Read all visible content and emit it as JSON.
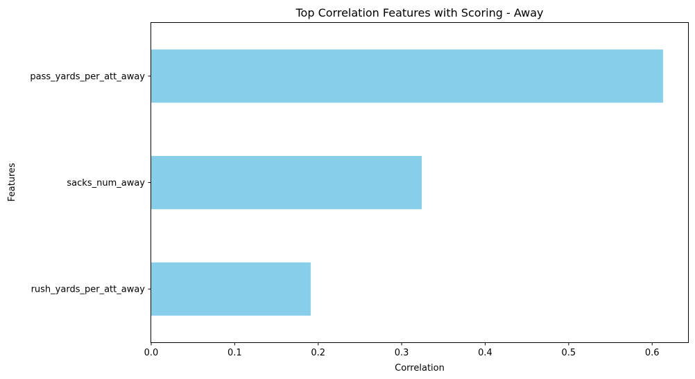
{
  "chart_data": {
    "type": "bar",
    "orientation": "horizontal",
    "title": "Top Correlation Features with Scoring - Away",
    "xlabel": "Correlation",
    "ylabel": "Features",
    "categories": [
      "pass_yards_per_att_away",
      "sacks_num_away",
      "rush_yards_per_att_away"
    ],
    "values": [
      0.613,
      0.324,
      0.191
    ],
    "xlim": [
      0,
      0.643
    ],
    "xticks": [
      0.0,
      0.1,
      0.2,
      0.3,
      0.4,
      0.5,
      0.6
    ],
    "xtick_labels": [
      "0.0",
      "0.1",
      "0.2",
      "0.3",
      "0.4",
      "0.5",
      "0.6"
    ],
    "grid": false,
    "bar_color": "#87ceeb"
  }
}
